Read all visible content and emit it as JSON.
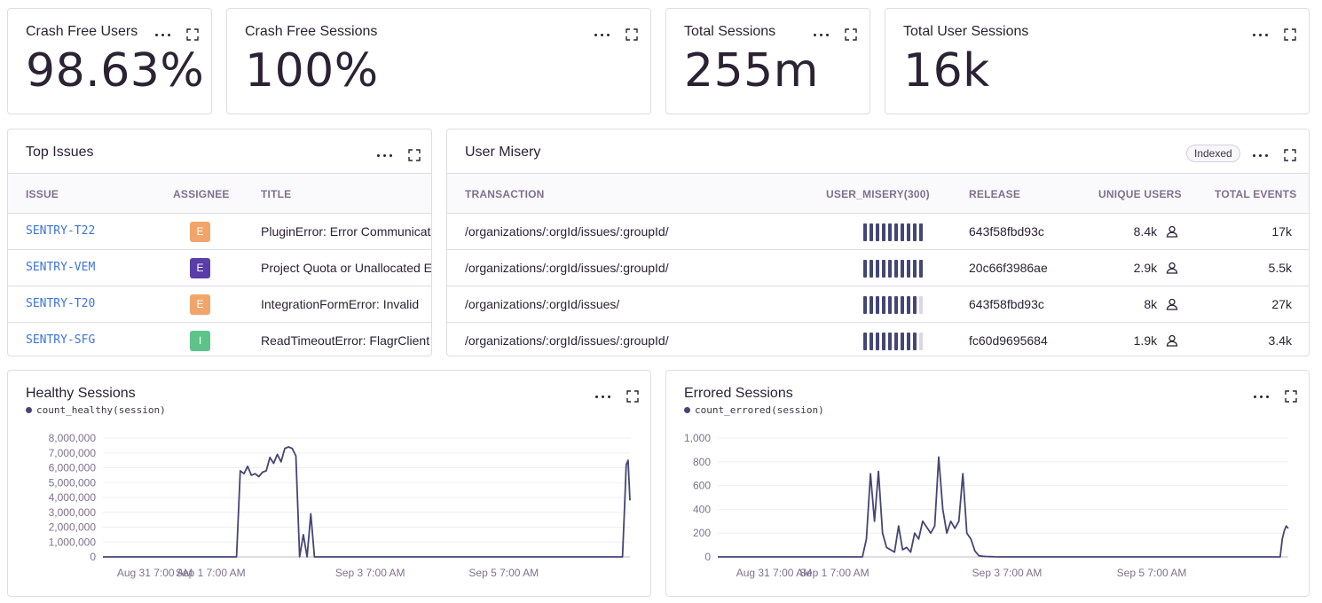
{
  "kpis": [
    {
      "title": "Crash Free Users",
      "value": "98.63%"
    },
    {
      "title": "Crash Free Sessions",
      "value": "100%"
    },
    {
      "title": "Total Sessions",
      "value": "255m"
    },
    {
      "title": "Total User Sessions",
      "value": "16k"
    }
  ],
  "top_issues": {
    "title": "Top Issues",
    "headers": {
      "issue": "ISSUE",
      "assignee": "ASSIGNEE",
      "title": "TITLE"
    },
    "rows": [
      {
        "issue": "SENTRY-T22",
        "assignee": "E",
        "assignee_color": "#f2a56a",
        "title": "PluginError: Error Communicating"
      },
      {
        "issue": "SENTRY-VEM",
        "assignee": "E",
        "assignee_color": "#5a3ea8",
        "title": "Project Quota or Unallocated Events"
      },
      {
        "issue": "SENTRY-T20",
        "assignee": "E",
        "assignee_color": "#f2a56a",
        "title": "IntegrationFormError: Invalid"
      },
      {
        "issue": "SENTRY-SFG",
        "assignee": "I",
        "assignee_color": "#5cc488",
        "title": "ReadTimeoutError: FlagrClient"
      }
    ]
  },
  "user_misery": {
    "title": "User Misery",
    "badge": "Indexed",
    "headers": {
      "transaction": "TRANSACTION",
      "misery": "USER_MISERY(300)",
      "release": "RELEASE",
      "unique_users": "UNIQUE USERS",
      "total_events": "TOTAL EVENTS"
    },
    "rows": [
      {
        "transaction": "/organizations/:orgId/issues/:groupId/",
        "misery_level": 10,
        "release": "643f58fbd93c",
        "unique_users": "8.4k",
        "total_events": "17k"
      },
      {
        "transaction": "/organizations/:orgId/issues/:groupId/",
        "misery_level": 10,
        "release": "20c66f3986ae",
        "unique_users": "2.9k",
        "total_events": "5.5k"
      },
      {
        "transaction": "/organizations/:orgId/issues/",
        "misery_level": 9,
        "release": "643f58fbd93c",
        "unique_users": "8k",
        "total_events": "27k"
      },
      {
        "transaction": "/organizations/:orgId/issues/:groupId/",
        "misery_level": 9,
        "release": "fc60d9695684",
        "unique_users": "1.9k",
        "total_events": "3.4k"
      }
    ]
  },
  "chart_data": [
    {
      "type": "area",
      "title": "Healthy Sessions",
      "legend": [
        "count_healthy(session)"
      ],
      "series": [
        {
          "name": "count_healthy(session)",
          "color": "#444674"
        }
      ],
      "yticks": [
        "0",
        "1,000,000",
        "2,000,000",
        "3,000,000",
        "4,000,000",
        "5,000,000",
        "6,000,000",
        "7,000,000",
        "8,000,000"
      ],
      "ylim": [
        0,
        8000000
      ],
      "xticks": [
        "Aug 31 7:00 AM",
        "Sep 1 7:00 AM",
        "Sep 3 7:00 AM",
        "Sep 5 7:00 AM"
      ],
      "x": [
        0,
        36,
        37,
        38,
        39,
        40,
        41,
        42,
        43,
        44,
        45,
        46,
        47,
        48,
        49,
        50,
        51,
        52,
        53,
        54,
        55,
        56,
        57,
        58,
        59,
        59.5,
        60,
        60.5,
        61,
        61.5,
        62,
        63,
        140,
        140.5,
        141,
        141.5,
        142
      ],
      "values": [
        0,
        0,
        5800000,
        5600000,
        6100000,
        5500000,
        5600000,
        5400000,
        5700000,
        5800000,
        6700000,
        6300000,
        6900000,
        6400000,
        7300000,
        7400000,
        7300000,
        6800000,
        0,
        1500000,
        0,
        2900000,
        0,
        0,
        0,
        0,
        0,
        0,
        0,
        0,
        0,
        0,
        0,
        3000000,
        6200000,
        6500000,
        3800000
      ]
    },
    {
      "type": "line",
      "title": "Errored Sessions",
      "legend": [
        "count_errored(session)"
      ],
      "series": [
        {
          "name": "count_errored(session)",
          "color": "#444674"
        }
      ],
      "yticks": [
        "0",
        "200",
        "400",
        "600",
        "800",
        "1,000"
      ],
      "ylim": [
        0,
        1000
      ],
      "xticks": [
        "Aug 31 7:00 AM",
        "Sep 1 7:00 AM",
        "Sep 3 7:00 AM",
        "Sep 5 7:00 AM"
      ],
      "x": [
        0,
        36,
        37,
        38,
        39,
        40,
        41,
        42,
        43,
        44,
        45,
        46,
        47,
        48,
        49,
        50,
        51,
        52,
        53,
        54,
        55,
        56,
        57,
        58,
        59,
        60,
        61,
        62,
        63,
        64,
        65,
        66,
        67,
        68,
        69,
        70,
        71,
        140,
        140.5,
        141,
        141.5,
        142
      ],
      "values": [
        0,
        0,
        150,
        700,
        300,
        720,
        200,
        80,
        60,
        40,
        260,
        60,
        80,
        40,
        200,
        150,
        300,
        250,
        200,
        260,
        840,
        400,
        200,
        300,
        240,
        300,
        700,
        200,
        150,
        50,
        10,
        5,
        3,
        2,
        1,
        0,
        0,
        0,
        150,
        220,
        260,
        240
      ]
    }
  ]
}
